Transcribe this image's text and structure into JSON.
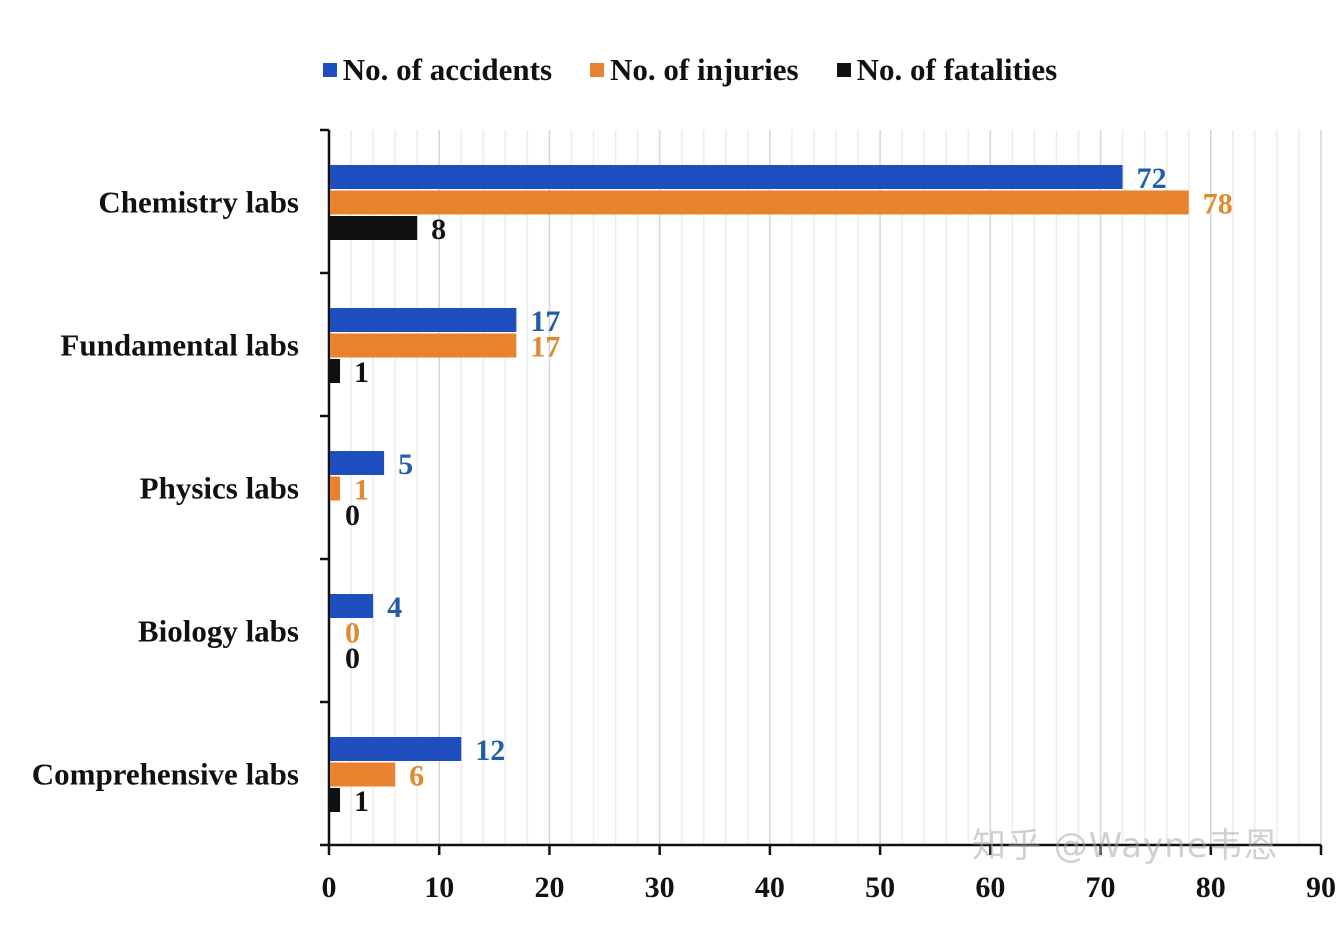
{
  "chart_data": {
    "type": "bar",
    "orientation": "horizontal",
    "categories": [
      "Chemistry labs",
      "Fundamental labs",
      "Physics labs",
      "Biology labs",
      "Comprehensive labs"
    ],
    "series": [
      {
        "name": "No. of accidents",
        "color": "#1f4fbf",
        "label_color": "#1f5fa8",
        "values": [
          72,
          17,
          5,
          4,
          12
        ]
      },
      {
        "name": "No. of injuries",
        "color": "#e8822e",
        "label_color": "#e08a2e",
        "values": [
          78,
          17,
          1,
          0,
          6
        ]
      },
      {
        "name": "No. of fatalities",
        "color": "#111111",
        "label_color": "#111111",
        "values": [
          8,
          1,
          0,
          0,
          1
        ]
      }
    ],
    "xlim": [
      0,
      90
    ],
    "xticks": [
      0,
      10,
      20,
      30,
      40,
      50,
      60,
      70,
      80,
      90
    ],
    "grid": "vertical",
    "legend": "top-center",
    "title": "",
    "xlabel": "",
    "ylabel": ""
  },
  "watermark": "知乎 @Wayne韦恩"
}
